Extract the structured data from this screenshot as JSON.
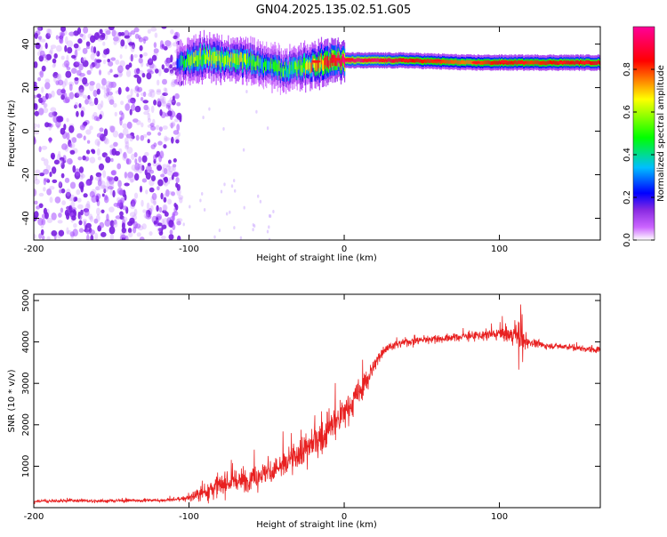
{
  "title": "GN04.2025.135.02.51.G05",
  "colors": {
    "snr_line": "#e82020",
    "scatter_noise": "#8a2be2",
    "colormap": [
      "#ffffff",
      "#cc66ff",
      "#8a2be2",
      "#0000ff",
      "#00bfff",
      "#00ff00",
      "#ffff00",
      "#ff0000",
      "#ff00cc"
    ]
  },
  "chart_data": [
    {
      "type": "heatmap",
      "xlabel": "Height of straight line (km)",
      "ylabel": "Frequency (Hz)",
      "xlim": [
        -200,
        165
      ],
      "ylim": [
        -50,
        48
      ],
      "xticks": [
        -200,
        -100,
        0,
        100
      ],
      "xtick_labels": [
        "-200",
        "-100",
        "0",
        "100"
      ],
      "yticks": [
        40,
        20,
        0,
        -20,
        -40
      ],
      "ytick_labels": [
        "40",
        "20",
        "0",
        "-20",
        "-40"
      ],
      "noise_region_x": [
        -200,
        -105
      ],
      "ridge": {
        "x": [
          -108,
          -100,
          -90,
          -80,
          -70,
          -60,
          -50,
          -40,
          -30,
          -20,
          -10,
          0,
          10,
          20,
          40,
          60,
          80,
          100,
          120,
          140,
          165
        ],
        "freq": [
          30,
          33,
          34,
          33,
          33,
          32,
          30,
          28,
          29,
          31,
          32,
          32.5,
          32.5,
          32.5,
          32.5,
          32,
          31.5,
          31.5,
          31.5,
          31.5,
          31.5
        ],
        "amplitude": [
          0.3,
          0.5,
          0.6,
          0.55,
          0.6,
          0.5,
          0.4,
          0.45,
          0.5,
          0.7,
          0.85,
          0.95,
          0.95,
          0.95,
          0.85,
          0.8,
          0.75,
          0.85,
          0.8,
          0.85,
          0.85
        ]
      },
      "colorbar": {
        "label": "Normalized spectral amplitude",
        "range": [
          0,
          1
        ],
        "ticks": [
          0.0,
          0.2,
          0.4,
          0.6,
          0.8
        ],
        "tick_labels": [
          "0.0",
          "0.2",
          "0.4",
          "0.6",
          "0.8"
        ]
      }
    },
    {
      "type": "line",
      "xlabel": "Height of straight line (km)",
      "ylabel": "SNR (10 * v/v)",
      "xlim": [
        -200,
        165
      ],
      "ylim": [
        0,
        5150
      ],
      "xticks": [
        -200,
        -100,
        0,
        100
      ],
      "xtick_labels": [
        "-200",
        "-100",
        "0",
        "100"
      ],
      "yticks": [
        1000,
        2000,
        3000,
        4000,
        5000
      ],
      "ytick_labels": [
        "1000",
        "2000",
        "3000",
        "4000",
        "5000"
      ],
      "series": [
        {
          "x": [
            -200,
            -180,
            -160,
            -140,
            -120,
            -105,
            -95,
            -85,
            -75,
            -65,
            -55,
            -45,
            -35,
            -25,
            -15,
            -5,
            0,
            5,
            10,
            15,
            20,
            25,
            30,
            40,
            50,
            60,
            70,
            80,
            90,
            100,
            110,
            115,
            120,
            130,
            140,
            150,
            165
          ],
          "values": [
            150,
            170,
            160,
            170,
            180,
            200,
            300,
            450,
            600,
            650,
            800,
            900,
            1100,
            1400,
            1700,
            2100,
            2300,
            2500,
            2800,
            3100,
            3450,
            3800,
            3900,
            4000,
            4050,
            4080,
            4100,
            4150,
            4150,
            4200,
            4150,
            4000,
            4000,
            3900,
            3900,
            3850,
            3800
          ],
          "noise": [
            60,
            60,
            60,
            60,
            60,
            80,
            200,
            400,
            400,
            400,
            450,
            500,
            550,
            600,
            650,
            700,
            600,
            600,
            550,
            500,
            300,
            200,
            150,
            150,
            150,
            150,
            150,
            150,
            200,
            250,
            300,
            350,
            150,
            120,
            120,
            120,
            120
          ]
        }
      ]
    }
  ]
}
